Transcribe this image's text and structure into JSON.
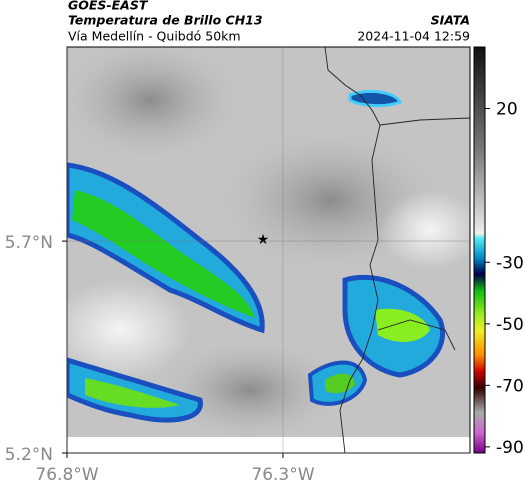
{
  "header": {
    "source": "GOES-EAST",
    "title": "Temperatura de Brillo CH13",
    "subtitle": "Vía Medellín - Quibdó 50km",
    "brand": "SIATA",
    "timestamp": "2024-11-04 12:59"
  },
  "map": {
    "xlim": [
      -76.8,
      -75.867
    ],
    "ylim": [
      5.2,
      6.158
    ],
    "lon_ticks": [
      {
        "value": -76.8,
        "label": "76.8°W"
      },
      {
        "value": -76.3,
        "label": "76.3°W"
      }
    ],
    "lat_ticks": [
      {
        "value": 5.7,
        "label": "5.7°N"
      },
      {
        "value": 5.2,
        "label": "5.2°N"
      }
    ],
    "colorbar": {
      "lim": [
        -92,
        40
      ],
      "ticks": [
        20,
        -30,
        -50,
        -70,
        -90
      ]
    }
  }
}
